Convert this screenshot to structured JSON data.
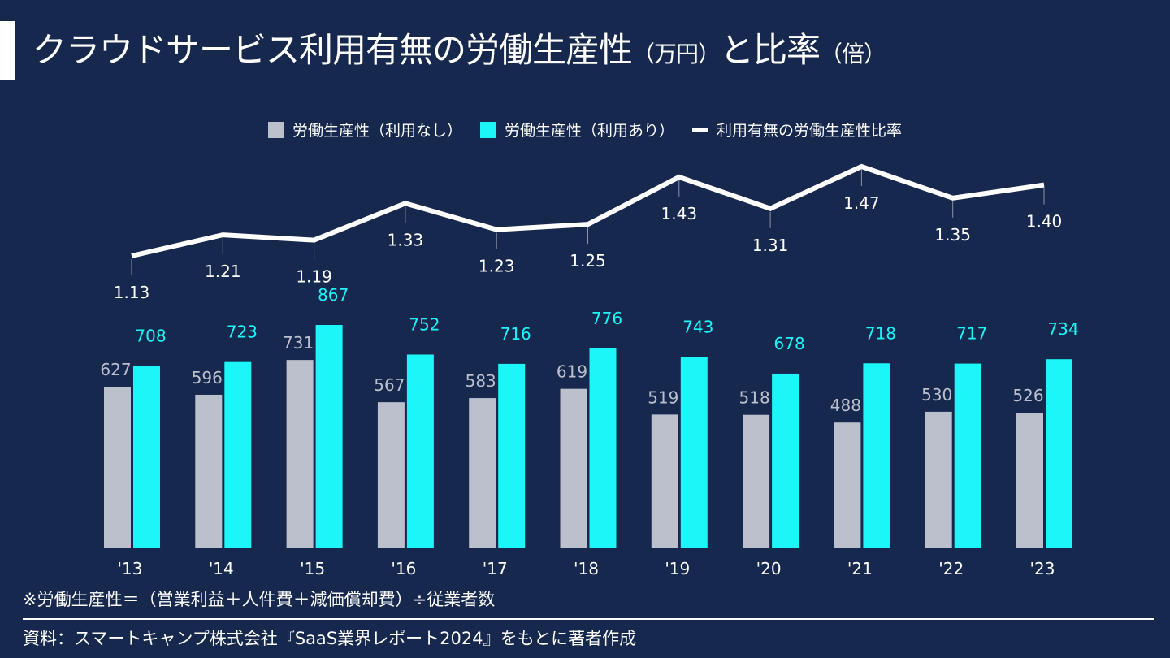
{
  "title": {
    "main": "クラウドサービス利用有無の労働生産性",
    "unit1": "（万円）",
    "mid": "と比率",
    "unit2": "（倍）"
  },
  "chart_data": {
    "type": "bar",
    "categories": [
      "'13",
      "'14",
      "'15",
      "'16",
      "'17",
      "'18",
      "'19",
      "'20",
      "'21",
      "'22",
      "'23"
    ],
    "series": [
      {
        "name": "労働生産性（利用なし）",
        "type": "bar",
        "color": "#bcbfcc",
        "label_color": "#bcbfcc",
        "values": [
          627,
          596,
          731,
          567,
          583,
          619,
          519,
          518,
          488,
          530,
          526
        ]
      },
      {
        "name": "労働生産性（利用あり）",
        "type": "bar",
        "color": "#1cf6f8",
        "label_color": "#1cf6f8",
        "values": [
          708,
          723,
          867,
          752,
          716,
          776,
          743,
          678,
          718,
          717,
          734
        ]
      },
      {
        "name": "利用有無の労働生産性比率",
        "type": "line",
        "color": "#ffffff",
        "label_color": "#ffffff",
        "values": [
          1.13,
          1.21,
          1.19,
          1.33,
          1.23,
          1.25,
          1.43,
          1.31,
          1.47,
          1.35,
          1.4
        ]
      }
    ],
    "ylim": [
      0,
      900
    ],
    "ratio_ylim": [
      0.85,
      1.52
    ],
    "grid": false,
    "legend_position": "top-center"
  },
  "footnote": "※労働生産性＝（営業利益＋人件費＋減価償却費）÷従業者数",
  "source": "資料：スマートキャンプ株式会社『SaaS業界レポート2024』をもとに著者作成",
  "colors": {
    "background": "#16284d",
    "accent": "#ffffff"
  }
}
